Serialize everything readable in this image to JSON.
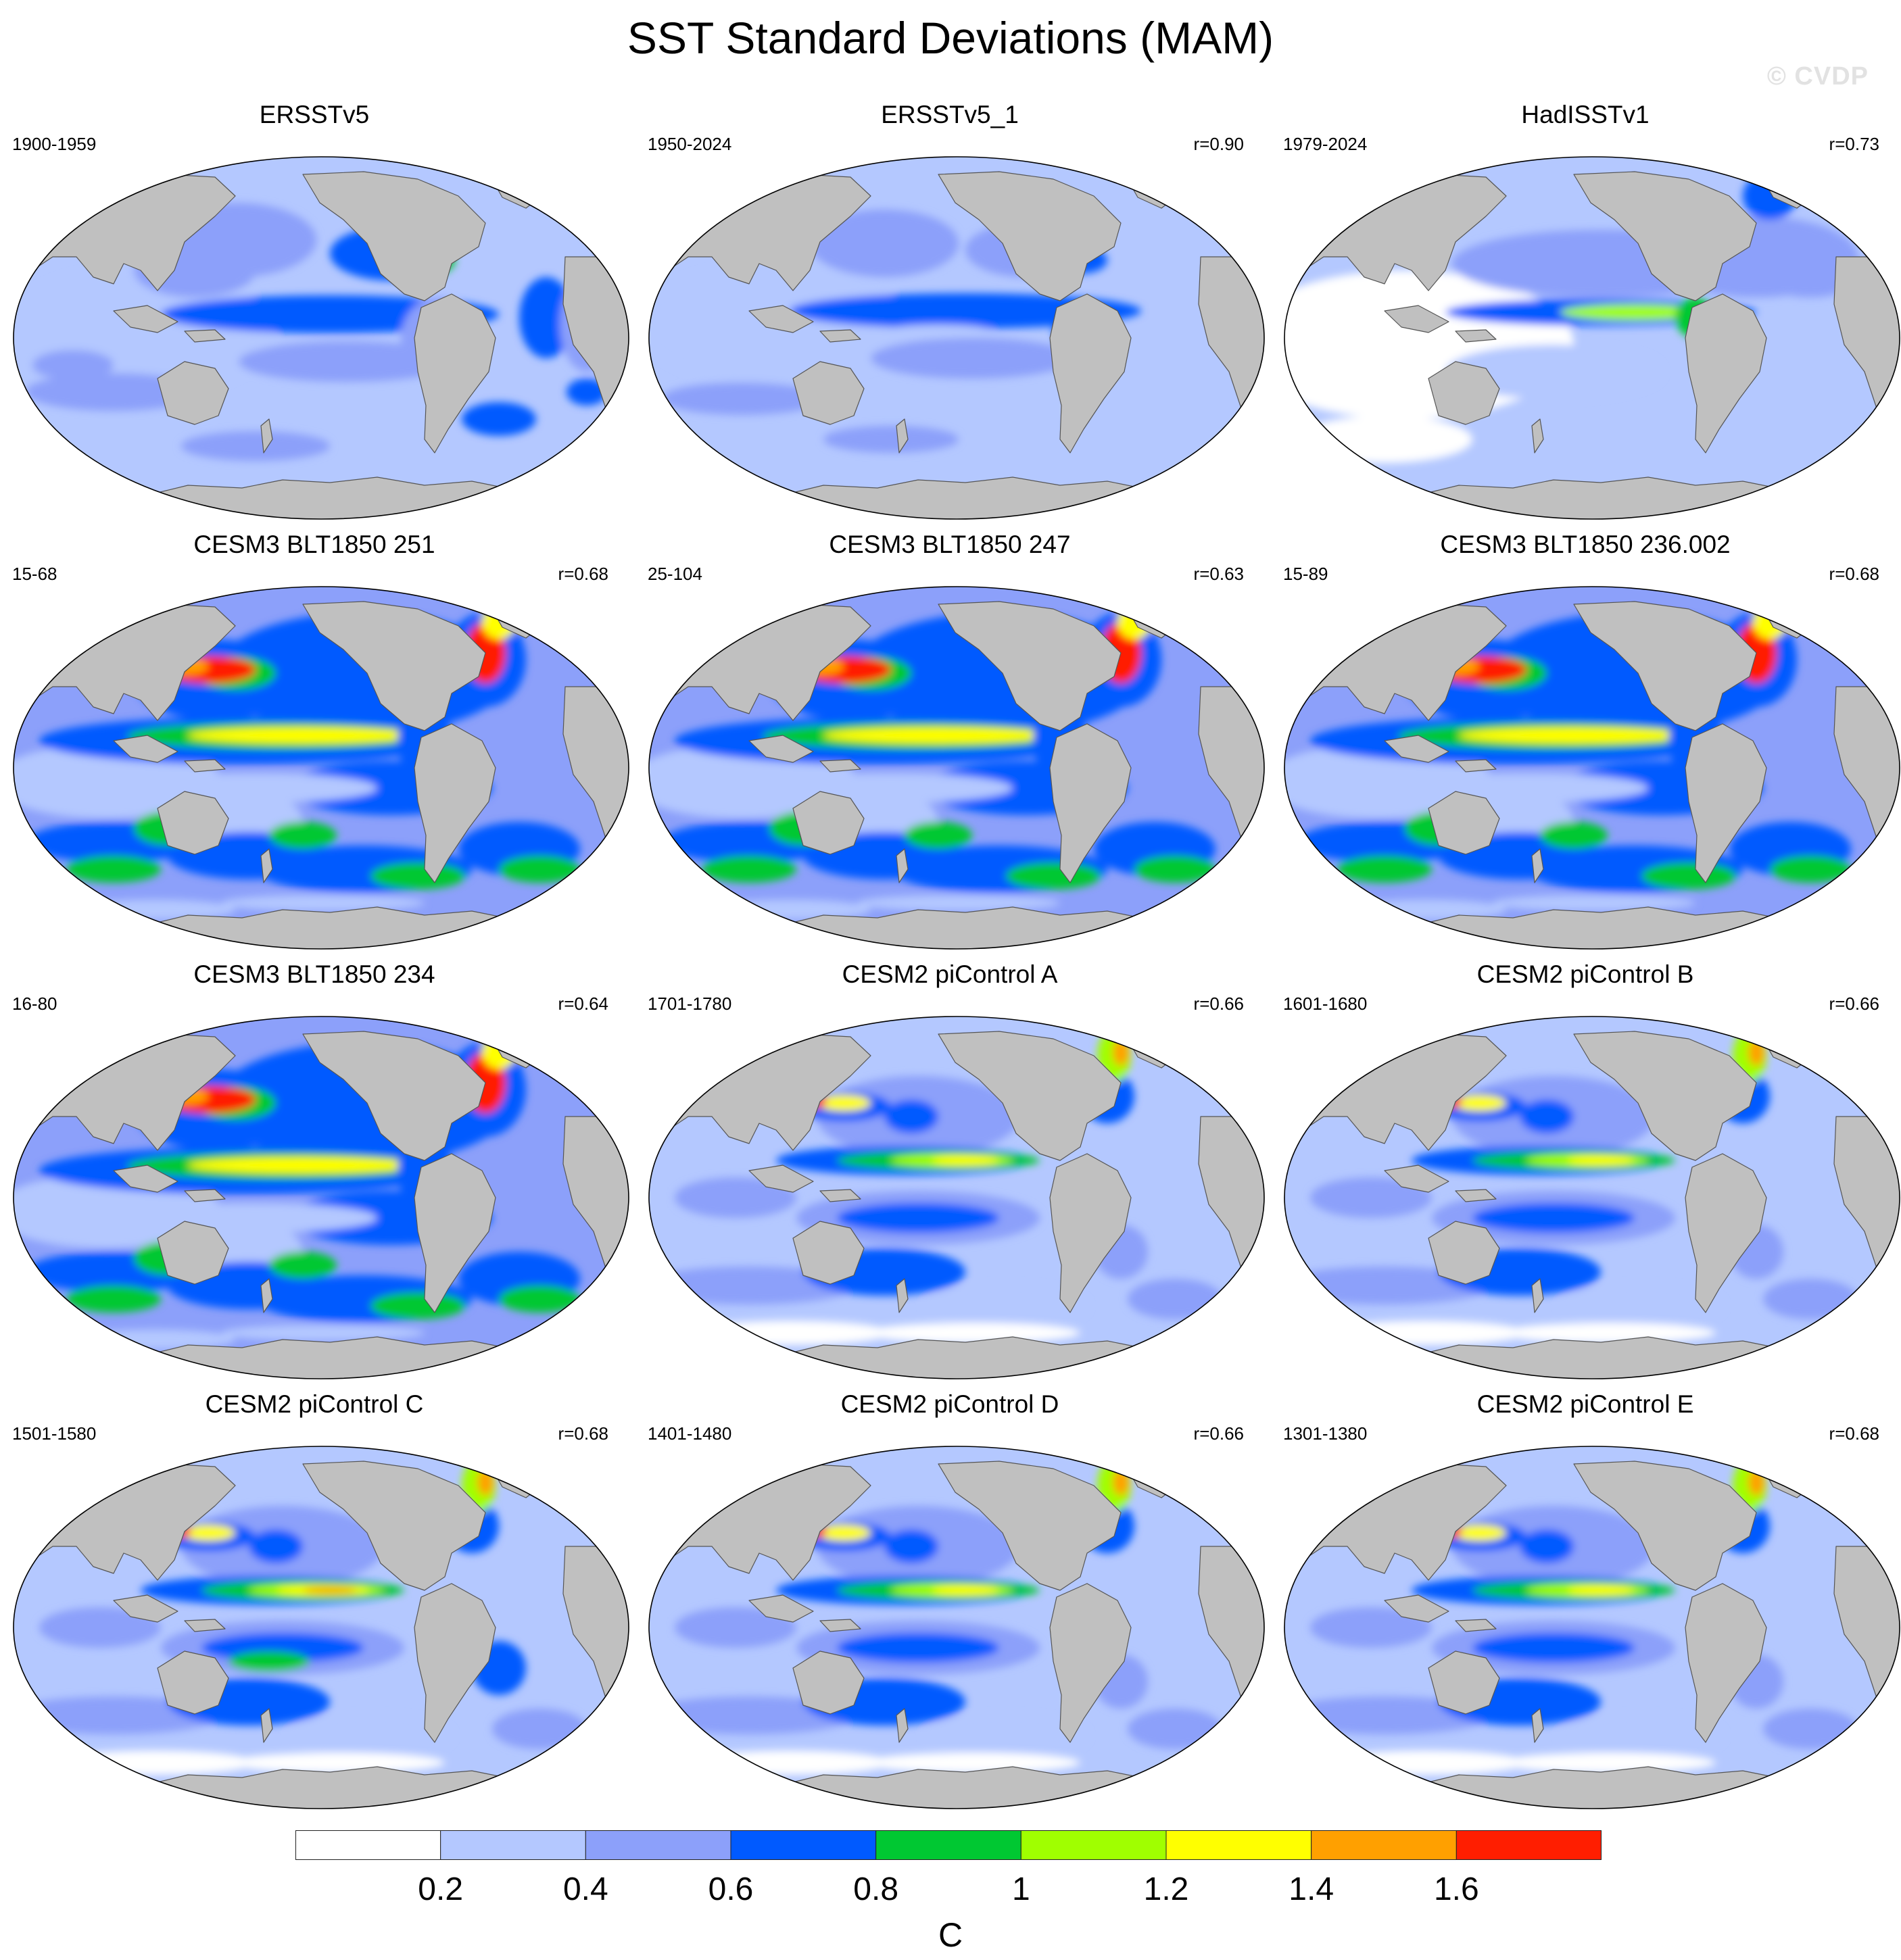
{
  "title": "SST Standard Deviations (MAM)",
  "watermark": "© CVDP",
  "panels": [
    {
      "title": "ERSSTv5",
      "period": "1900-1959",
      "r": "",
      "style": "obs1"
    },
    {
      "title": "ERSSTv5_1",
      "period": "1950-2024",
      "r": "r=0.90",
      "style": "obs2"
    },
    {
      "title": "HadISSTv1",
      "period": "1979-2024",
      "r": "r=0.73",
      "style": "obs3"
    },
    {
      "title": "CESM3 BLT1850 251",
      "period": "15-68",
      "r": "r=0.68",
      "style": "cesm3"
    },
    {
      "title": "CESM3 BLT1850 247",
      "period": "25-104",
      "r": "r=0.63",
      "style": "cesm3"
    },
    {
      "title": "CESM3 BLT1850 236.002",
      "period": "15-89",
      "r": "r=0.68",
      "style": "cesm3"
    },
    {
      "title": "CESM3 BLT1850 234",
      "period": "16-80",
      "r": "r=0.64",
      "style": "cesm3"
    },
    {
      "title": "CESM2 piControl A",
      "period": "1701-1780",
      "r": "r=0.66",
      "style": "cesm2"
    },
    {
      "title": "CESM2 piControl B",
      "period": "1601-1680",
      "r": "r=0.66",
      "style": "cesm2"
    },
    {
      "title": "CESM2 piControl C",
      "period": "1501-1580",
      "r": "r=0.68",
      "style": "cesm2c"
    },
    {
      "title": "CESM2 piControl D",
      "period": "1401-1480",
      "r": "r=0.66",
      "style": "cesm2"
    },
    {
      "title": "CESM2 piControl E",
      "period": "1301-1380",
      "r": "r=0.68",
      "style": "cesm2"
    }
  ],
  "colorbar": {
    "levels": [
      0.2,
      0.4,
      0.6,
      0.8,
      1,
      1.2,
      1.4,
      1.6
    ],
    "tick_labels": [
      "0.2",
      "0.4",
      "0.6",
      "0.8",
      "1",
      "1.2",
      "1.4",
      "1.6"
    ],
    "colors": [
      "#ffffff",
      "#b4c8ff",
      "#8ca0fa",
      "#005aff",
      "#00c832",
      "#a0ff00",
      "#ffff00",
      "#ffa000",
      "#ff1e00"
    ],
    "units": "C"
  },
  "colors": {
    "land": "#c0c0c0",
    "coast": "#555555"
  }
}
